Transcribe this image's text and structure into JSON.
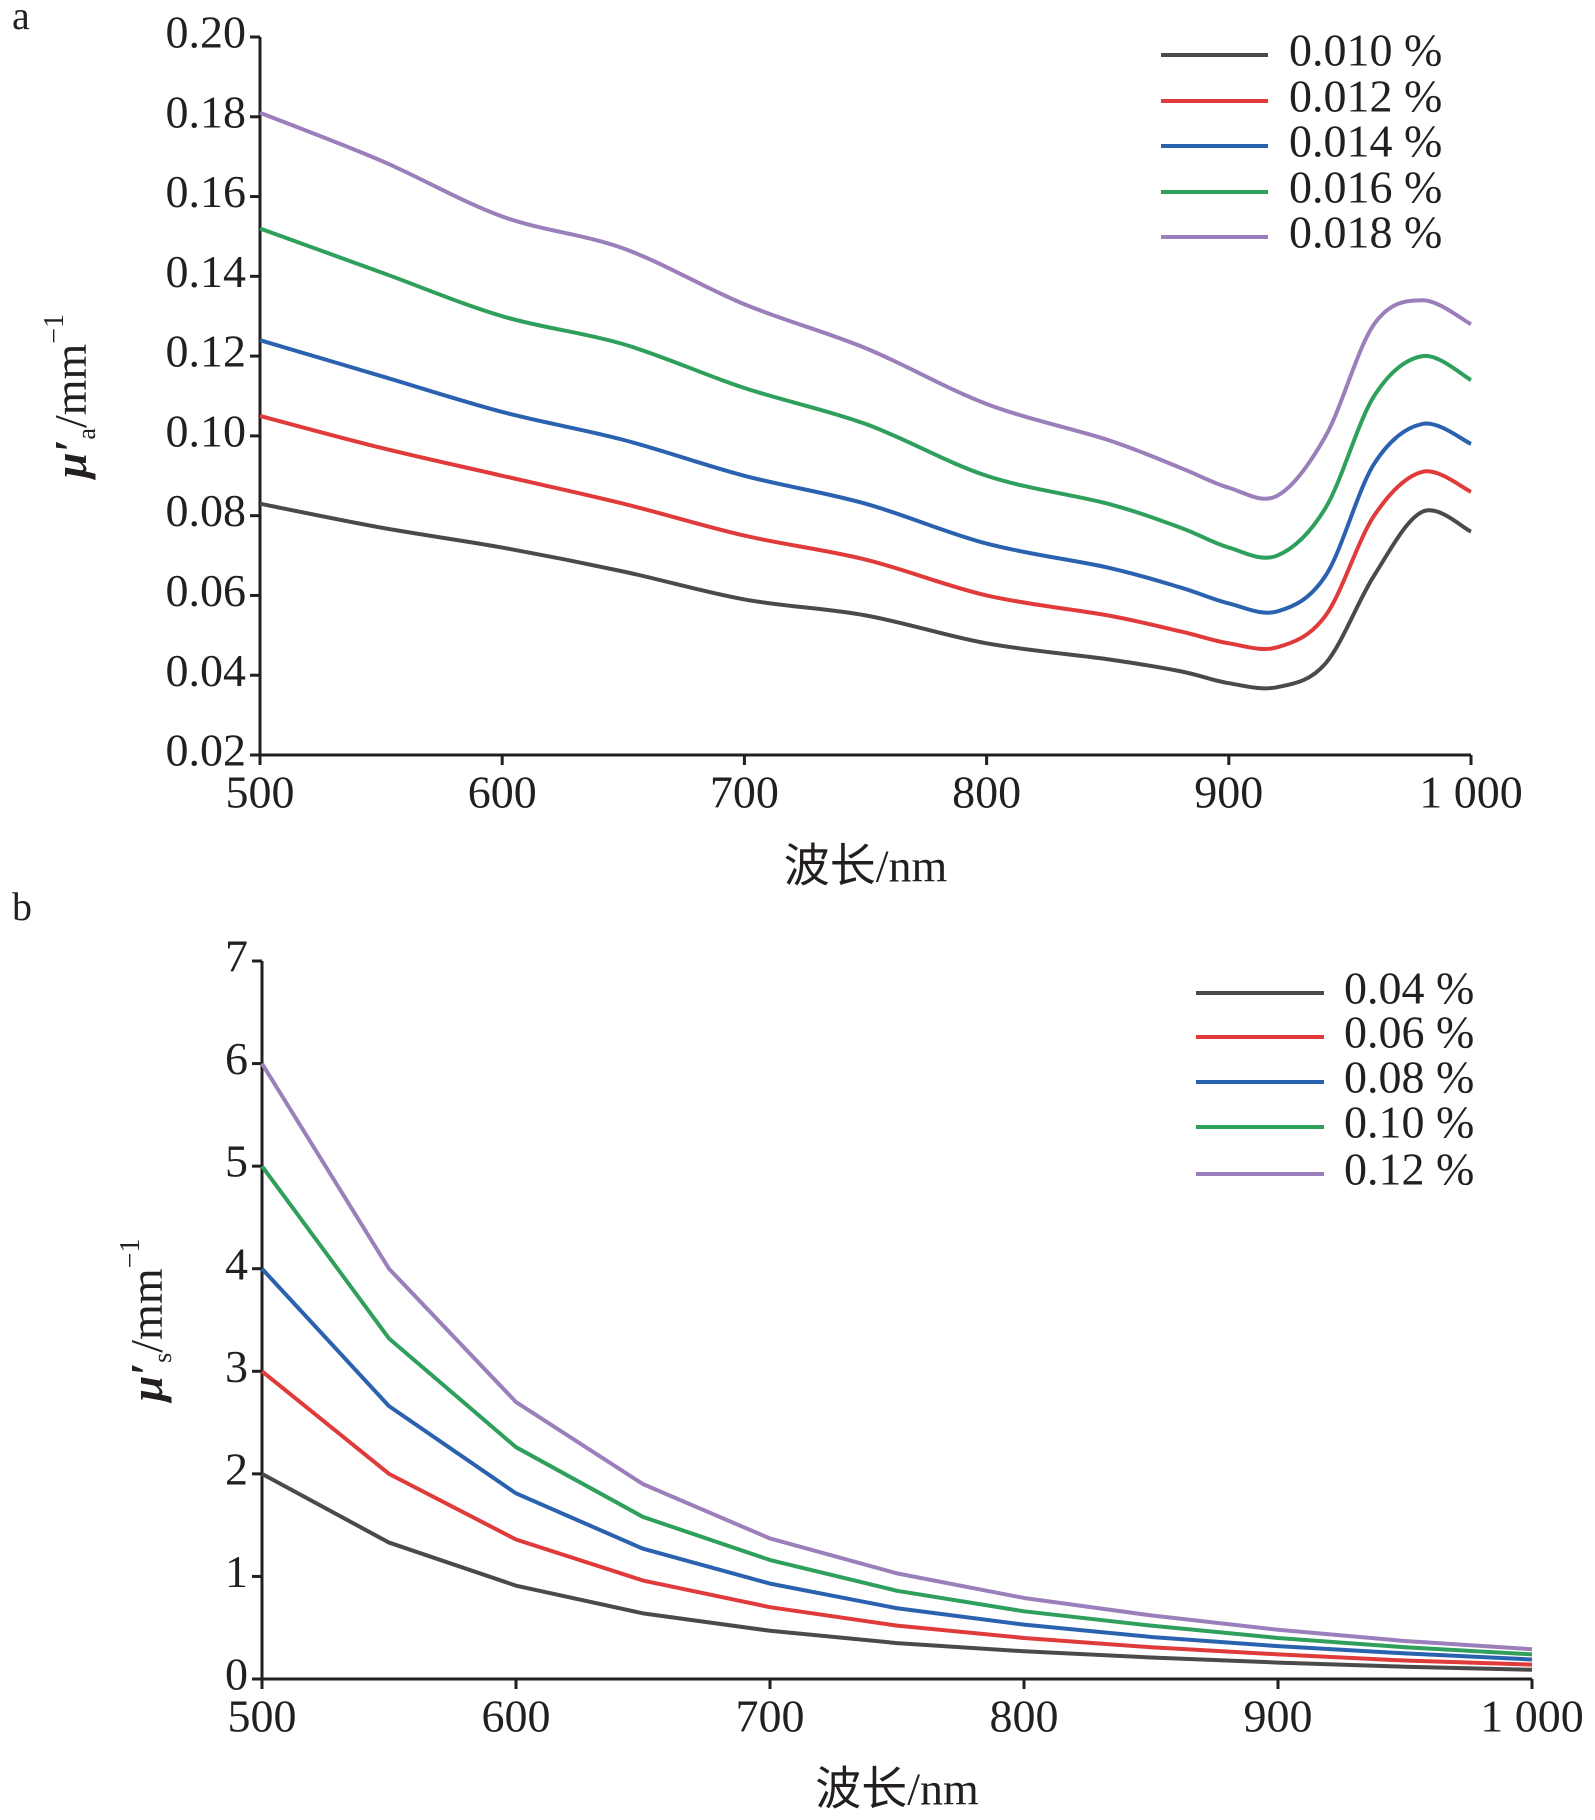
{
  "chart_data": [
    {
      "type": "line",
      "panel": "a",
      "ylabel": {
        "symbol": "μ′",
        "subscript": "a",
        "unit": "/mm",
        "exponent": "−1"
      },
      "xlabel": "波长/nm",
      "x": [
        500,
        550,
        600,
        650,
        700,
        750,
        800,
        850,
        880,
        900,
        920,
        940,
        960,
        980,
        1000
      ],
      "xlim": [
        500,
        1000
      ],
      "xticks": [
        500,
        600,
        700,
        800,
        900,
        {
          "value": 1000,
          "label": "1 000"
        }
      ],
      "ylim": [
        0.02,
        0.2
      ],
      "yticks": [
        0.02,
        0.04,
        0.06,
        0.08,
        {
          "value": 0.1,
          "label": "0.10"
        },
        0.12,
        0.14,
        0.16,
        0.18,
        {
          "value": 0.2,
          "label": "0.20"
        }
      ],
      "series": [
        {
          "name": "0.010 %",
          "color": "#4a4a4a",
          "values": [
            0.083,
            0.077,
            0.072,
            0.066,
            0.059,
            0.055,
            0.048,
            0.044,
            0.041,
            0.038,
            0.037,
            0.043,
            0.065,
            0.081,
            0.076
          ]
        },
        {
          "name": "0.012 %",
          "color": "#e03a3a",
          "values": [
            0.105,
            0.097,
            0.09,
            0.083,
            0.075,
            0.069,
            0.06,
            0.055,
            0.051,
            0.048,
            0.047,
            0.055,
            0.08,
            0.091,
            0.086
          ]
        },
        {
          "name": "0.014 %",
          "color": "#2a62b0",
          "values": [
            0.124,
            0.115,
            0.106,
            0.099,
            0.09,
            0.083,
            0.073,
            0.067,
            0.062,
            0.058,
            0.056,
            0.065,
            0.093,
            0.103,
            0.098
          ]
        },
        {
          "name": "0.016 %",
          "color": "#2f9f5c",
          "values": [
            0.152,
            0.141,
            0.13,
            0.123,
            0.112,
            0.103,
            0.09,
            0.083,
            0.077,
            0.072,
            0.07,
            0.082,
            0.11,
            0.12,
            0.114
          ]
        },
        {
          "name": "0.018 %",
          "color": "#9a7fba",
          "values": [
            0.181,
            0.169,
            0.155,
            0.147,
            0.133,
            0.122,
            0.108,
            0.099,
            0.092,
            0.087,
            0.085,
            0.1,
            0.128,
            0.134,
            0.128
          ]
        }
      ]
    },
    {
      "type": "line",
      "panel": "b",
      "ylabel": {
        "symbol": "μ′",
        "subscript": "s",
        "unit": "/mm",
        "exponent": "−1"
      },
      "xlabel": "波长/nm",
      "x": [
        500,
        550,
        600,
        650,
        700,
        750,
        800,
        850,
        900,
        950,
        1000
      ],
      "xlim": [
        500,
        1000
      ],
      "xticks": [
        500,
        600,
        700,
        800,
        900,
        {
          "value": 1000,
          "label": "1 000"
        }
      ],
      "ylim": [
        0,
        7
      ],
      "yticks": [
        0,
        1,
        2,
        3,
        4,
        5,
        6,
        7
      ],
      "series": [
        {
          "name": "0.04 %",
          "color": "#4a4a4a",
          "values": [
            2.0,
            1.33,
            0.91,
            0.64,
            0.47,
            0.35,
            0.27,
            0.21,
            0.16,
            0.12,
            0.09
          ]
        },
        {
          "name": "0.06 %",
          "color": "#e03a3a",
          "values": [
            3.0,
            2.0,
            1.36,
            0.96,
            0.7,
            0.52,
            0.4,
            0.31,
            0.24,
            0.18,
            0.14
          ]
        },
        {
          "name": "0.08 %",
          "color": "#2a62b0",
          "values": [
            4.0,
            2.66,
            1.81,
            1.27,
            0.93,
            0.69,
            0.53,
            0.41,
            0.32,
            0.25,
            0.19
          ]
        },
        {
          "name": "0.10 %",
          "color": "#2f9f5c",
          "values": [
            5.0,
            3.32,
            2.26,
            1.58,
            1.16,
            0.86,
            0.66,
            0.52,
            0.4,
            0.31,
            0.24
          ]
        },
        {
          "name": "0.12 %",
          "color": "#9a7fba",
          "values": [
            6.0,
            4.0,
            2.7,
            1.9,
            1.37,
            1.03,
            0.79,
            0.62,
            0.48,
            0.37,
            0.29
          ]
        }
      ]
    }
  ]
}
